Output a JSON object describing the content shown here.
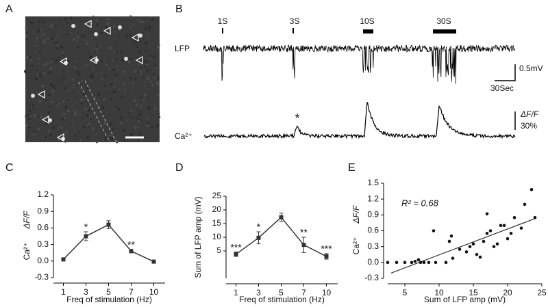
{
  "figure": {
    "panel_labels": {
      "a": "A",
      "b": "B",
      "c": "C",
      "d": "D",
      "e": "E"
    },
    "panel_b": {
      "stimuli": [
        "1S",
        "3S",
        "10S",
        "30S"
      ],
      "lfp_label": "LFP",
      "ca_label": "Ca²⁺",
      "lfp_scale": "0.5mV",
      "time_scale": "30Sec",
      "ca_scale_unit": "ΔF/F",
      "ca_scale": "30%",
      "marker": "*"
    }
  },
  "chart_data": [
    {
      "type": "line",
      "categories": [
        "1",
        "3",
        "5",
        "7",
        "10"
      ],
      "values": [
        0.03,
        0.45,
        0.66,
        0.18,
        -0.01
      ],
      "errors": [
        0.02,
        0.08,
        0.07,
        0.03,
        0.02
      ],
      "significance": [
        null,
        "*",
        null,
        "**",
        null
      ],
      "color": "#333333",
      "ylim": [
        -0.3,
        1.2
      ],
      "yticks": [
        -0.3,
        {
          "value": 0,
          "label": "0.0"
        },
        0.3,
        0.6,
        0.9,
        1.2
      ],
      "xlabel": "Freq of stimulation (Hz)",
      "ylabel": "Ca²⁺",
      "ylabel_unit": "ΔF/F"
    },
    {
      "type": "line",
      "categories": [
        "1",
        "3",
        "5",
        "7",
        "10"
      ],
      "values": [
        3.8,
        9.8,
        17.3,
        7.2,
        3.0
      ],
      "errors": [
        0.8,
        2.2,
        1.5,
        2.8,
        1.0
      ],
      "significance": [
        "***",
        "*",
        null,
        "**",
        "***"
      ],
      "color": "#333333",
      "ylim": [
        -5,
        25
      ],
      "yticks": [
        5,
        10,
        15,
        20,
        25
      ],
      "xlabel": "Freq of stimulation (Hz)",
      "ylabel": "Sum of LFP amp (mV)"
    },
    {
      "type": "scatter",
      "color": "#111111",
      "x": [
        2.5,
        3.8,
        5,
        6,
        6.5,
        7,
        7.3,
        7.8,
        8.5,
        9.2,
        9.5,
        11,
        11.5,
        11.8,
        12,
        13,
        14,
        14.5,
        15,
        15.5,
        16,
        16.5,
        17,
        17,
        17.5,
        18,
        18.5,
        19,
        19.5,
        20,
        20.5,
        21,
        22,
        22.5,
        23.5,
        24
      ],
      "y": [
        0,
        0,
        0,
        0,
        0.02,
        0.05,
        0,
        0,
        0,
        0.6,
        0,
        0,
        0.4,
        0.5,
        0.08,
        0.25,
        0.2,
        0.3,
        0.35,
        0.15,
        0.1,
        0.4,
        0.55,
        0.92,
        0.6,
        0.3,
        0.35,
        0.7,
        0.7,
        0.45,
        0.55,
        0.85,
        0.65,
        1.1,
        1.38,
        0.85
      ],
      "fit": {
        "x": [
          3,
          24
        ],
        "y": [
          -0.2,
          0.83
        ]
      },
      "annotation": "R² = 0.68",
      "xlim": [
        2.5,
        25
      ],
      "ylim": [
        -0.3,
        1.5
      ],
      "xticks": [
        5,
        10,
        15,
        20,
        25
      ],
      "yticks": [
        -0.3,
        {
          "value": 0,
          "label": "0.0"
        },
        0.3,
        0.6,
        0.9,
        1.2,
        1.5
      ],
      "xlabel": "Sum of LFP amp (mV)",
      "ylabel": "Ca²⁺",
      "ylabel_unit": "ΔF/F"
    }
  ]
}
